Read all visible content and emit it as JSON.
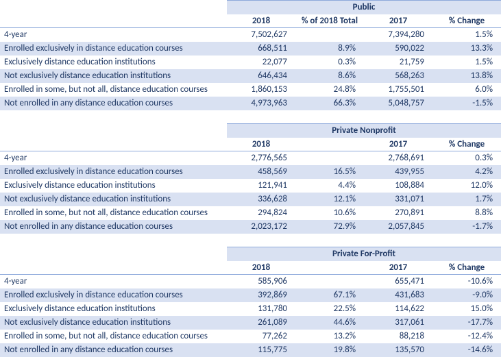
{
  "columns": {
    "c2018": "2018",
    "pct2018": "% of 2018 Total",
    "c2017": "2017",
    "pctchg": "% Change"
  },
  "rowLabels": {
    "fouryear": "4-year",
    "exclEnrolled": "Enrolled exclusively in distance education courses",
    "exclInst": "Exclusively distance education institutions",
    "notExclInst": "Not exclusively distance education institutions",
    "someNotAll": "Enrolled in some, but not all, distance education courses",
    "notEnrolled": "Not enrolled in any distance education courses"
  },
  "sections": {
    "public": {
      "title": "Public",
      "fouryear": {
        "v2018": "7,502,627",
        "pct2018": "",
        "v2017": "7,394,280",
        "pctchg": "1.5%"
      },
      "exclEnrolled": {
        "v2018": "668,511",
        "pct2018": "8.9%",
        "v2017": "590,022",
        "pctchg": "13.3%"
      },
      "exclInst": {
        "v2018": "22,077",
        "pct2018": "0.3%",
        "v2017": "21,759",
        "pctchg": "1.5%"
      },
      "notExclInst": {
        "v2018": "646,434",
        "pct2018": "8.6%",
        "v2017": "568,263",
        "pctchg": "13.8%"
      },
      "someNotAll": {
        "v2018": "1,860,153",
        "pct2018": "24.8%",
        "v2017": "1,755,501",
        "pctchg": "6.0%"
      },
      "notEnrolled": {
        "v2018": "4,973,963",
        "pct2018": "66.3%",
        "v2017": "5,048,757",
        "pctchg": "-1.5%"
      }
    },
    "privnp": {
      "title": "Private Nonprofit",
      "fouryear": {
        "v2018": "2,776,565",
        "pct2018": "",
        "v2017": "2,768,691",
        "pctchg": "0.3%"
      },
      "exclEnrolled": {
        "v2018": "458,569",
        "pct2018": "16.5%",
        "v2017": "439,955",
        "pctchg": "4.2%"
      },
      "exclInst": {
        "v2018": "121,941",
        "pct2018": "4.4%",
        "v2017": "108,884",
        "pctchg": "12.0%"
      },
      "notExclInst": {
        "v2018": "336,628",
        "pct2018": "12.1%",
        "v2017": "331,071",
        "pctchg": "1.7%"
      },
      "someNotAll": {
        "v2018": "294,824",
        "pct2018": "10.6%",
        "v2017": "270,891",
        "pctchg": "8.8%"
      },
      "notEnrolled": {
        "v2018": "2,023,172",
        "pct2018": "72.9%",
        "v2017": "2,057,845",
        "pctchg": "-1.7%"
      }
    },
    "privfp": {
      "title": "Private For-Profit",
      "fouryear": {
        "v2018": "585,906",
        "pct2018": "",
        "v2017": "655,471",
        "pctchg": "-10.6%"
      },
      "exclEnrolled": {
        "v2018": "392,869",
        "pct2018": "67.1%",
        "v2017": "431,683",
        "pctchg": "-9.0%"
      },
      "exclInst": {
        "v2018": "131,780",
        "pct2018": "22.5%",
        "v2017": "114,622",
        "pctchg": "15.0%"
      },
      "notExclInst": {
        "v2018": "261,089",
        "pct2018": "44.6%",
        "v2017": "317,061",
        "pctchg": "-17.7%"
      },
      "someNotAll": {
        "v2018": "77,262",
        "pct2018": "13.2%",
        "v2017": "88,218",
        "pctchg": "-12.4%"
      },
      "notEnrolled": {
        "v2018": "115,775",
        "pct2018": "19.8%",
        "v2017": "135,570",
        "pctchg": "-14.6%"
      }
    }
  },
  "colors": {
    "text": "#1f3864",
    "band": "#d9e1f2",
    "border": "#8ea9db",
    "background": "#ffffff"
  }
}
